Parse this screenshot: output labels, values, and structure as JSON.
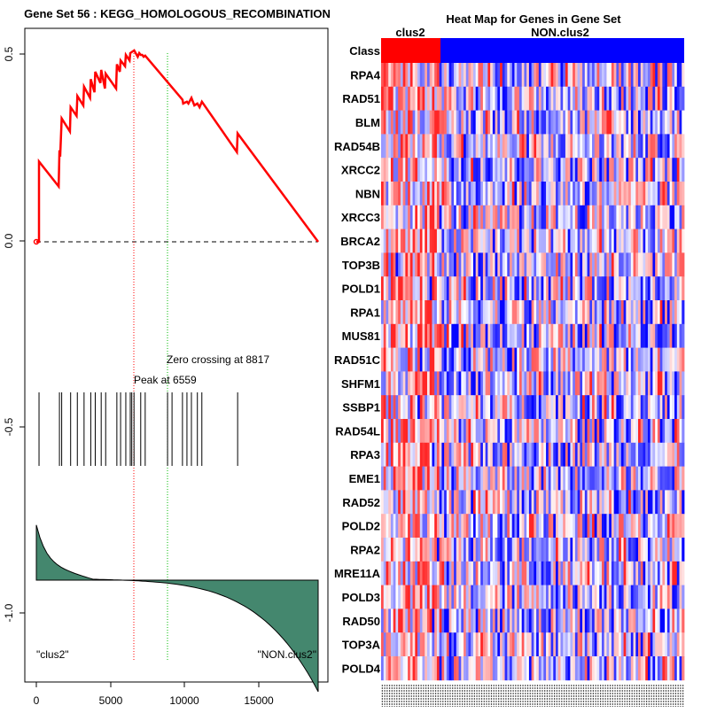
{
  "enrichment_plot": {
    "title": "Gene Set  56 : KEGG_HOMOLOGOUS_RECOMBINATION",
    "x_ticks": [
      "0",
      "5000",
      "10000",
      "15000"
    ],
    "y_ticks": [
      "0.5",
      "0.0",
      "-0.5",
      "-1.0"
    ],
    "peak_label": "Peak at 6559",
    "zero_crossing_label": "Zero crossing at 8817",
    "left_class_label": "\"clus2\"",
    "right_class_label": "\"NON.clus2\"",
    "colors": {
      "running_es": "#ff0000",
      "peak_line": "#ff0000",
      "zero_line": "#00bb00",
      "ranked_fill": "#44876e"
    }
  },
  "heatmap": {
    "title": "Heat Map for Genes in Gene Set",
    "class_row_label": "Class",
    "class_labels": [
      "clus2",
      "NON.clus2"
    ],
    "genes": [
      "RPA4",
      "RAD51",
      "BLM",
      "RAD54B",
      "XRCC2",
      "NBN",
      "XRCC3",
      "BRCA2",
      "TOP3B",
      "POLD1",
      "RPA1",
      "MUS81",
      "RAD51C",
      "SHFM1",
      "SSBP1",
      "RAD54L",
      "RPA3",
      "EME1",
      "RAD52",
      "POLD2",
      "RPA2",
      "MRE11A",
      "POLD3",
      "RAD50",
      "TOP3A",
      "POLD4"
    ],
    "colors": {
      "class_a": "#ff0000",
      "class_b": "#0000ff"
    }
  },
  "chart_data": {
    "type": "line",
    "title": "Gene Set  56 : KEGG_HOMOLOGOUS_RECOMBINATION",
    "xlabel": "",
    "ylabel": "",
    "xlim": [
      0,
      18900
    ],
    "ylim": [
      -1.15,
      0.58
    ],
    "peak_rank": 6559,
    "zero_crossing_rank": 8817,
    "series": [
      {
        "name": "running enrichment score",
        "x": [
          0,
          180,
          180,
          1500,
          1550,
          1600,
          1700,
          2250,
          2300,
          2700,
          2750,
          3150,
          3200,
          3600,
          3650,
          3900,
          3950,
          4300,
          4350,
          4600,
          4650,
          5350,
          5400,
          5600,
          5650,
          5950,
          6000,
          6250,
          6300,
          6559,
          6800,
          6900,
          7000,
          7100,
          7200,
          7300,
          9800,
          9850,
          10100,
          10200,
          10400,
          10600,
          10800,
          10950,
          11100,
          13450,
          13500,
          18900
        ],
        "y": [
          0.0,
          0.0,
          0.215,
          0.148,
          0.245,
          0.228,
          0.33,
          0.295,
          0.36,
          0.337,
          0.39,
          0.365,
          0.415,
          0.385,
          0.435,
          0.4,
          0.455,
          0.425,
          0.46,
          0.41,
          0.45,
          0.41,
          0.475,
          0.455,
          0.485,
          0.47,
          0.5,
          0.485,
          0.505,
          0.512,
          0.495,
          0.505,
          0.5,
          0.5,
          0.495,
          0.498,
          0.38,
          0.37,
          0.375,
          0.37,
          0.385,
          0.365,
          0.37,
          0.36,
          0.375,
          0.24,
          0.29,
          0.0
        ]
      }
    ],
    "hit_ranks": [
      180,
      1550,
      1700,
      2300,
      2750,
      3200,
      3650,
      3950,
      4350,
      4650,
      5400,
      5650,
      6000,
      6300,
      6400,
      6550,
      7000,
      7300,
      8800,
      9100,
      9800,
      10100,
      10400,
      10800,
      11100,
      13500
    ]
  }
}
